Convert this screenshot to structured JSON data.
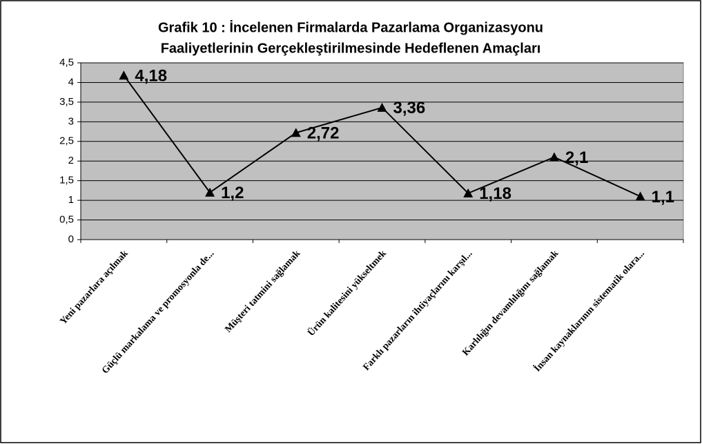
{
  "chart_data": {
    "type": "line",
    "title": [
      "Grafik 10 : İncelenen Firmalarda Pazarlama Organizasyonu",
      "Faaliyetlerinin Gerçekleştirilmesinde Hedeflenen Amaçları"
    ],
    "categories": [
      "Yeni pazarlara açılmak",
      "Güçlü markalama ve promosyonla de...",
      "Müşteri tatmini sağlamak",
      "Ürün kalitesini yükseltmek",
      "Farklı pazarların ihtiyaçlarını karşıl...",
      "Karlılığın devamlılığını sağlamak",
      "İnsan kaynaklarının sistematik olara..."
    ],
    "values": [
      4.18,
      1.2,
      2.72,
      3.36,
      1.18,
      2.1,
      1.1
    ],
    "value_labels": [
      "4,18",
      "1,2",
      "2,72",
      "3,36",
      "1,18",
      "2,1",
      "1,1"
    ],
    "color": "#000000",
    "ylim": [
      0,
      4.5
    ],
    "yticks": [
      0,
      {
        "value": 0.5,
        "label": "0,5"
      },
      1,
      {
        "value": 1.5,
        "label": "1,5"
      },
      2,
      {
        "value": 2.5,
        "label": "2,5"
      },
      3,
      {
        "value": 3.5,
        "label": "3,5"
      },
      4,
      {
        "value": 4.5,
        "label": "4,5"
      }
    ],
    "grid": true
  }
}
